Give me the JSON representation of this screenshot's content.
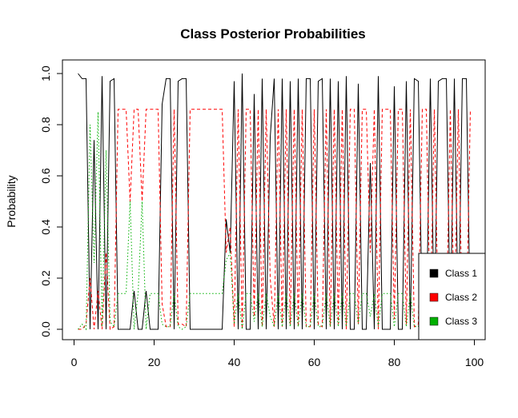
{
  "chart_data": {
    "type": "line",
    "title": "Class Posterior Probabilities",
    "xlabel": "",
    "ylabel": "Probability",
    "xlim": [
      0,
      100
    ],
    "ylim": [
      0,
      1
    ],
    "xticks": [
      0,
      20,
      40,
      60,
      80,
      100
    ],
    "yticks": [
      0.0,
      0.2,
      0.4,
      0.6,
      0.8,
      1.0
    ],
    "xtick_labels": [
      "0",
      "20",
      "40",
      "60",
      "80",
      "100"
    ],
    "ytick_labels": [
      "0.0",
      "0.2",
      "0.4",
      "0.6",
      "0.8",
      "1.0"
    ],
    "grid": false,
    "legend_position": "bottom-right",
    "x": [
      1,
      2,
      3,
      4,
      5,
      6,
      7,
      8,
      9,
      10,
      11,
      12,
      13,
      14,
      15,
      16,
      17,
      18,
      19,
      20,
      21,
      22,
      23,
      24,
      25,
      26,
      27,
      28,
      29,
      30,
      31,
      32,
      33,
      34,
      35,
      36,
      37,
      38,
      39,
      40,
      41,
      42,
      43,
      44,
      45,
      46,
      47,
      48,
      49,
      50,
      51,
      52,
      53,
      54,
      55,
      56,
      57,
      58,
      59,
      60,
      61,
      62,
      63,
      64,
      65,
      66,
      67,
      68,
      69,
      70,
      71,
      72,
      73,
      74,
      75,
      76,
      77,
      78,
      79,
      80,
      81,
      82,
      83,
      84,
      85,
      86,
      87,
      88,
      89,
      90,
      91,
      92,
      93,
      94,
      95,
      96,
      97,
      98,
      99
    ],
    "series": [
      {
        "name": "Class 1",
        "color": "#000000",
        "dash": "solid",
        "values": [
          1.0,
          0.98,
          0.98,
          0.0,
          0.74,
          0.0,
          0.99,
          0.0,
          0.97,
          0.98,
          0.0,
          0.0,
          0.0,
          0.0,
          0.15,
          0.0,
          0.0,
          0.15,
          0.0,
          0.0,
          0.0,
          0.88,
          0.98,
          0.98,
          0.0,
          0.97,
          0.98,
          0.98,
          0.0,
          0.0,
          0.0,
          0.0,
          0.0,
          0.0,
          0.0,
          0.0,
          0.0,
          0.43,
          0.3,
          0.97,
          0.0,
          1.0,
          0.0,
          0.0,
          0.92,
          0.0,
          0.98,
          0.0,
          0.75,
          0.98,
          0.0,
          0.98,
          0.0,
          0.97,
          0.0,
          0.98,
          0.0,
          0.98,
          0.98,
          0.0,
          0.97,
          0.98,
          0.0,
          0.98,
          0.0,
          0.97,
          0.0,
          0.99,
          0.0,
          0.0,
          0.96,
          0.0,
          0.0,
          0.65,
          0.0,
          0.99,
          0.0,
          0.0,
          0.0,
          0.95,
          0.0,
          0.0,
          0.97,
          0.0,
          0.98,
          0.97,
          0.0,
          0.0,
          0.98,
          0.0,
          0.97,
          0.98,
          0.98,
          0.0,
          0.98,
          0.0,
          0.98,
          0.98,
          0.0
        ]
      },
      {
        "name": "Class 2",
        "color": "#ff0000",
        "dash": "dashed",
        "values": [
          0.0,
          0.0,
          0.02,
          0.2,
          0.0,
          0.15,
          0.0,
          0.3,
          0.0,
          0.01,
          0.86,
          0.86,
          0.86,
          0.5,
          0.86,
          0.86,
          0.5,
          0.86,
          0.86,
          0.86,
          0.86,
          0.1,
          0.01,
          0.01,
          0.86,
          0.02,
          0.02,
          0.01,
          0.86,
          0.86,
          0.86,
          0.86,
          0.86,
          0.86,
          0.86,
          0.86,
          0.86,
          0.3,
          0.4,
          0.01,
          0.86,
          0.0,
          0.86,
          0.86,
          0.05,
          0.86,
          0.01,
          0.86,
          0.2,
          0.01,
          0.86,
          0.01,
          0.86,
          0.02,
          0.86,
          0.01,
          0.86,
          0.01,
          0.01,
          0.86,
          0.02,
          0.01,
          0.86,
          0.01,
          0.86,
          0.02,
          0.86,
          0.0,
          0.86,
          0.86,
          0.02,
          0.86,
          0.86,
          0.3,
          0.86,
          0.0,
          0.86,
          0.86,
          0.86,
          0.04,
          0.86,
          0.86,
          0.02,
          0.86,
          0.01,
          0.02,
          0.86,
          0.86,
          0.01,
          0.86,
          0.02,
          0.01,
          0.01,
          0.86,
          0.01,
          0.86,
          0.01,
          0.01,
          0.86
        ]
      },
      {
        "name": "Class 3",
        "color": "#00b000",
        "dash": "dotted",
        "values": [
          0.0,
          0.02,
          0.0,
          0.8,
          0.26,
          0.85,
          0.01,
          0.7,
          0.03,
          0.01,
          0.14,
          0.14,
          0.14,
          0.5,
          0.0,
          0.14,
          0.5,
          0.0,
          0.14,
          0.14,
          0.14,
          0.02,
          0.01,
          0.01,
          0.14,
          0.01,
          0.0,
          0.01,
          0.14,
          0.14,
          0.14,
          0.14,
          0.14,
          0.14,
          0.14,
          0.14,
          0.14,
          0.27,
          0.3,
          0.02,
          0.14,
          0.0,
          0.14,
          0.14,
          0.03,
          0.14,
          0.01,
          0.14,
          0.05,
          0.01,
          0.14,
          0.01,
          0.14,
          0.01,
          0.14,
          0.01,
          0.14,
          0.01,
          0.01,
          0.14,
          0.01,
          0.01,
          0.14,
          0.01,
          0.14,
          0.01,
          0.14,
          0.01,
          0.14,
          0.14,
          0.02,
          0.14,
          0.14,
          0.05,
          0.14,
          0.01,
          0.14,
          0.14,
          0.14,
          0.01,
          0.14,
          0.14,
          0.01,
          0.14,
          0.01,
          0.01,
          0.14,
          0.14,
          0.01,
          0.14,
          0.01,
          0.01,
          0.01,
          0.14,
          0.01,
          0.14,
          0.01,
          0.01,
          0.14
        ]
      }
    ]
  }
}
